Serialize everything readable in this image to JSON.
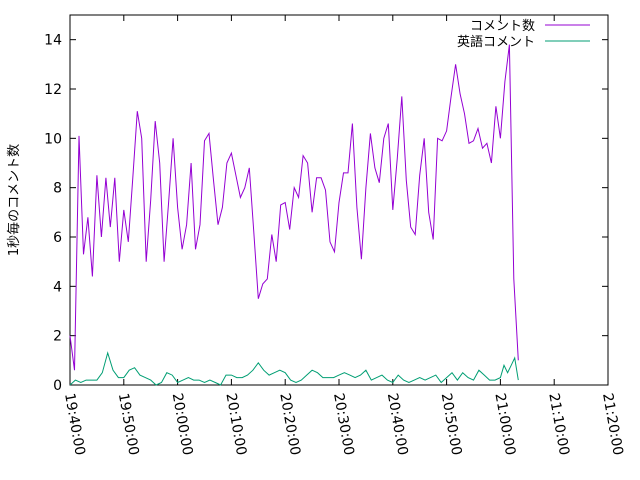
{
  "chart_data": {
    "type": "line",
    "ylabel": "1秒毎のコメント数",
    "xlabel": "",
    "title": "",
    "x_axis_type": "time",
    "x_ticks": [
      "19:40:00",
      "19:50:00",
      "20:00:00",
      "20:10:00",
      "20:20:00",
      "20:30:00",
      "20:40:00",
      "20:50:00",
      "21:00:00",
      "21:10:00",
      "21:20:00"
    ],
    "xlim": [
      "19:40:00",
      "21:20:00"
    ],
    "ylim": [
      0,
      15
    ],
    "y_ticks": [
      0,
      2,
      4,
      6,
      8,
      10,
      12,
      14
    ],
    "grid": false,
    "legend_position": "top-right",
    "series": [
      {
        "name": "コメント数",
        "color": "#9400d3",
        "points": [
          [
            "19:40:00",
            2.0
          ],
          [
            "19:40:50",
            0.6
          ],
          [
            "19:41:40",
            10.1
          ],
          [
            "19:42:30",
            5.3
          ],
          [
            "19:43:20",
            6.8
          ],
          [
            "19:44:10",
            4.4
          ],
          [
            "19:45:00",
            8.5
          ],
          [
            "19:45:50",
            6.0
          ],
          [
            "19:46:40",
            8.4
          ],
          [
            "19:47:30",
            6.4
          ],
          [
            "19:48:20",
            8.4
          ],
          [
            "19:49:10",
            5.0
          ],
          [
            "19:50:00",
            7.1
          ],
          [
            "19:50:50",
            5.8
          ],
          [
            "19:51:40",
            8.4
          ],
          [
            "19:52:30",
            11.1
          ],
          [
            "19:53:20",
            10.0
          ],
          [
            "19:54:10",
            5.0
          ],
          [
            "19:55:00",
            7.5
          ],
          [
            "19:55:50",
            10.7
          ],
          [
            "19:56:40",
            9.0
          ],
          [
            "19:57:30",
            5.0
          ],
          [
            "19:58:20",
            7.4
          ],
          [
            "19:59:10",
            10.0
          ],
          [
            "20:00:00",
            7.2
          ],
          [
            "20:00:50",
            5.5
          ],
          [
            "20:01:40",
            6.5
          ],
          [
            "20:02:30",
            9.0
          ],
          [
            "20:03:20",
            5.5
          ],
          [
            "20:04:10",
            6.5
          ],
          [
            "20:05:00",
            9.9
          ],
          [
            "20:05:50",
            10.2
          ],
          [
            "20:06:40",
            8.3
          ],
          [
            "20:07:30",
            6.5
          ],
          [
            "20:08:20",
            7.2
          ],
          [
            "20:09:10",
            9.0
          ],
          [
            "20:10:00",
            9.4
          ],
          [
            "20:10:50",
            8.5
          ],
          [
            "20:11:40",
            7.6
          ],
          [
            "20:12:30",
            8.0
          ],
          [
            "20:13:20",
            8.8
          ],
          [
            "20:14:10",
            6.2
          ],
          [
            "20:15:00",
            3.5
          ],
          [
            "20:15:50",
            4.1
          ],
          [
            "20:16:40",
            4.3
          ],
          [
            "20:17:30",
            6.1
          ],
          [
            "20:18:20",
            5.0
          ],
          [
            "20:19:10",
            7.3
          ],
          [
            "20:20:00",
            7.4
          ],
          [
            "20:20:50",
            6.3
          ],
          [
            "20:21:40",
            8.0
          ],
          [
            "20:22:30",
            7.6
          ],
          [
            "20:23:20",
            9.3
          ],
          [
            "20:24:10",
            9.0
          ],
          [
            "20:25:00",
            7.0
          ],
          [
            "20:25:50",
            8.4
          ],
          [
            "20:26:40",
            8.4
          ],
          [
            "20:27:30",
            7.9
          ],
          [
            "20:28:20",
            5.8
          ],
          [
            "20:29:10",
            5.4
          ],
          [
            "20:30:00",
            7.4
          ],
          [
            "20:30:50",
            8.6
          ],
          [
            "20:31:40",
            8.6
          ],
          [
            "20:32:30",
            10.6
          ],
          [
            "20:33:20",
            7.2
          ],
          [
            "20:34:10",
            5.1
          ],
          [
            "20:35:00",
            8.0
          ],
          [
            "20:35:50",
            10.2
          ],
          [
            "20:36:40",
            8.8
          ],
          [
            "20:37:30",
            8.2
          ],
          [
            "20:38:20",
            10.0
          ],
          [
            "20:39:10",
            10.6
          ],
          [
            "20:40:00",
            7.1
          ],
          [
            "20:40:50",
            9.2
          ],
          [
            "20:41:40",
            11.7
          ],
          [
            "20:42:30",
            8.3
          ],
          [
            "20:43:20",
            6.4
          ],
          [
            "20:44:10",
            6.1
          ],
          [
            "20:45:00",
            8.5
          ],
          [
            "20:45:50",
            10.0
          ],
          [
            "20:46:40",
            7.0
          ],
          [
            "20:47:30",
            5.9
          ],
          [
            "20:48:20",
            10.0
          ],
          [
            "20:49:10",
            9.9
          ],
          [
            "20:50:00",
            10.3
          ],
          [
            "20:50:50",
            11.7
          ],
          [
            "20:51:40",
            13.0
          ],
          [
            "20:52:30",
            11.8
          ],
          [
            "20:53:20",
            11.0
          ],
          [
            "20:54:10",
            9.8
          ],
          [
            "20:55:00",
            9.9
          ],
          [
            "20:55:50",
            10.4
          ],
          [
            "20:56:40",
            9.6
          ],
          [
            "20:57:30",
            9.8
          ],
          [
            "20:58:20",
            9.0
          ],
          [
            "20:59:10",
            11.3
          ],
          [
            "21:00:00",
            10.0
          ],
          [
            "21:00:50",
            12.3
          ],
          [
            "21:01:40",
            13.8
          ],
          [
            "21:02:30",
            4.3
          ],
          [
            "21:03:20",
            1.0
          ]
        ]
      },
      {
        "name": "英語コメント",
        "color": "#009e73",
        "points": [
          [
            "19:40:00",
            0.0
          ],
          [
            "19:41:00",
            0.2
          ],
          [
            "19:42:00",
            0.1
          ],
          [
            "19:43:00",
            0.2
          ],
          [
            "19:44:00",
            0.2
          ],
          [
            "19:45:00",
            0.2
          ],
          [
            "19:46:00",
            0.5
          ],
          [
            "19:47:00",
            1.3
          ],
          [
            "19:48:00",
            0.6
          ],
          [
            "19:49:00",
            0.3
          ],
          [
            "19:50:00",
            0.3
          ],
          [
            "19:51:00",
            0.6
          ],
          [
            "19:52:00",
            0.7
          ],
          [
            "19:53:00",
            0.4
          ],
          [
            "19:54:00",
            0.3
          ],
          [
            "19:55:00",
            0.2
          ],
          [
            "19:56:00",
            0.0
          ],
          [
            "19:57:00",
            0.1
          ],
          [
            "19:58:00",
            0.5
          ],
          [
            "19:59:00",
            0.4
          ],
          [
            "20:00:00",
            0.1
          ],
          [
            "20:01:00",
            0.2
          ],
          [
            "20:02:00",
            0.3
          ],
          [
            "20:03:00",
            0.2
          ],
          [
            "20:04:00",
            0.2
          ],
          [
            "20:05:00",
            0.1
          ],
          [
            "20:06:00",
            0.2
          ],
          [
            "20:07:00",
            0.1
          ],
          [
            "20:08:00",
            0.0
          ],
          [
            "20:09:00",
            0.4
          ],
          [
            "20:10:00",
            0.4
          ],
          [
            "20:11:00",
            0.3
          ],
          [
            "20:12:00",
            0.3
          ],
          [
            "20:13:00",
            0.4
          ],
          [
            "20:14:00",
            0.6
          ],
          [
            "20:15:00",
            0.9
          ],
          [
            "20:16:00",
            0.6
          ],
          [
            "20:17:00",
            0.4
          ],
          [
            "20:18:00",
            0.5
          ],
          [
            "20:19:00",
            0.6
          ],
          [
            "20:20:00",
            0.5
          ],
          [
            "20:21:00",
            0.2
          ],
          [
            "20:22:00",
            0.1
          ],
          [
            "20:23:00",
            0.2
          ],
          [
            "20:24:00",
            0.4
          ],
          [
            "20:25:00",
            0.6
          ],
          [
            "20:26:00",
            0.5
          ],
          [
            "20:27:00",
            0.3
          ],
          [
            "20:28:00",
            0.3
          ],
          [
            "20:29:00",
            0.3
          ],
          [
            "20:30:00",
            0.4
          ],
          [
            "20:31:00",
            0.5
          ],
          [
            "20:32:00",
            0.4
          ],
          [
            "20:33:00",
            0.3
          ],
          [
            "20:34:00",
            0.4
          ],
          [
            "20:35:00",
            0.6
          ],
          [
            "20:36:00",
            0.2
          ],
          [
            "20:37:00",
            0.3
          ],
          [
            "20:38:00",
            0.4
          ],
          [
            "20:39:00",
            0.2
          ],
          [
            "20:40:00",
            0.1
          ],
          [
            "20:41:00",
            0.4
          ],
          [
            "20:42:00",
            0.2
          ],
          [
            "20:43:00",
            0.1
          ],
          [
            "20:44:00",
            0.2
          ],
          [
            "20:45:00",
            0.3
          ],
          [
            "20:46:00",
            0.2
          ],
          [
            "20:47:00",
            0.3
          ],
          [
            "20:48:00",
            0.4
          ],
          [
            "20:49:00",
            0.1
          ],
          [
            "20:50:00",
            0.3
          ],
          [
            "20:51:00",
            0.5
          ],
          [
            "20:52:00",
            0.2
          ],
          [
            "20:53:00",
            0.5
          ],
          [
            "20:54:00",
            0.3
          ],
          [
            "20:55:00",
            0.2
          ],
          [
            "20:56:00",
            0.6
          ],
          [
            "20:57:00",
            0.4
          ],
          [
            "20:58:00",
            0.2
          ],
          [
            "20:59:00",
            0.2
          ],
          [
            "21:00:00",
            0.3
          ],
          [
            "21:00:40",
            0.8
          ],
          [
            "21:01:20",
            0.5
          ],
          [
            "21:02:00",
            0.8
          ],
          [
            "21:02:40",
            1.1
          ],
          [
            "21:03:20",
            0.2
          ]
        ]
      }
    ]
  }
}
